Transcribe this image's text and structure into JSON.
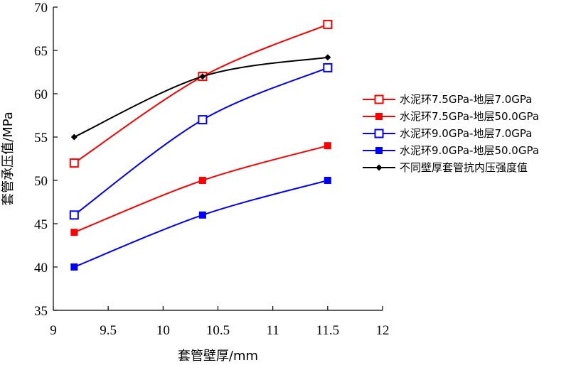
{
  "chart_data": {
    "type": "line",
    "xlabel": "套管壁厚/mm",
    "ylabel": "套管承压值/MPa",
    "xlim": [
      9,
      12
    ],
    "ylim": [
      35,
      70
    ],
    "xticks": [
      9,
      9.5,
      10,
      10.5,
      11,
      11.5,
      12
    ],
    "yticks": [
      35,
      40,
      45,
      50,
      55,
      60,
      65,
      70
    ],
    "xtick_labels": [
      "9",
      "9.5",
      "10",
      "10.5",
      "11",
      "11.5",
      "12"
    ],
    "ytick_labels": [
      "35",
      "40",
      "45",
      "50",
      "55",
      "60",
      "65",
      "70"
    ],
    "grid": false,
    "legend_position": "right",
    "x": [
      9.19,
      10.36,
      11.5
    ],
    "series": [
      {
        "name": "水泥环7.5GPa-地层7.0GPa",
        "values": [
          52,
          62,
          68
        ],
        "color": "#ff0000",
        "marker": "square-open"
      },
      {
        "name": "水泥环7.5GPa-地层50.0GPa",
        "values": [
          44,
          50,
          54
        ],
        "color": "#ff0000",
        "marker": "square-filled"
      },
      {
        "name": "水泥环9.0GPa-地层7.0GPa",
        "values": [
          46,
          57,
          63
        ],
        "color": "#0000ff",
        "marker": "square-open"
      },
      {
        "name": "水泥环9.0GPa-地层50.0GPa",
        "values": [
          40,
          46,
          50
        ],
        "color": "#0000ff",
        "marker": "square-filled"
      },
      {
        "name": "不同壁厚套管抗内压强度值",
        "values": [
          55,
          62,
          64.2
        ],
        "color": "#000000",
        "marker": "diamond-filled"
      }
    ]
  }
}
